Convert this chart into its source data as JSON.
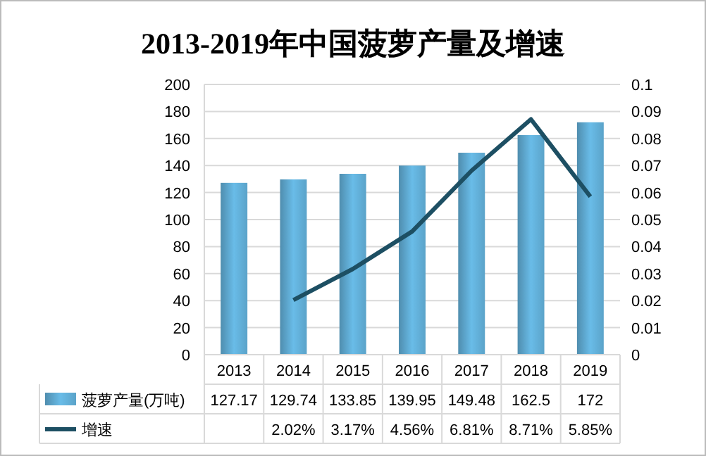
{
  "chart_data": {
    "type": "bar",
    "title": "2013-2019年中国菠萝产量及增速",
    "categories": [
      "2013",
      "2014",
      "2015",
      "2016",
      "2017",
      "2018",
      "2019"
    ],
    "series": [
      {
        "name": "菠萝产量(万吨)",
        "color": "#5ba3c9",
        "values": [
          127.17,
          129.74,
          133.85,
          139.95,
          149.48,
          162.5,
          172
        ],
        "value_labels": [
          "127.17",
          "129.74",
          "133.85",
          "139.95",
          "149.48",
          "162.5",
          "172"
        ]
      },
      {
        "name": "增速",
        "type": "line",
        "axis": "y2",
        "color": "#1d4f63",
        "values": [
          null,
          0.0202,
          0.0317,
          0.0456,
          0.0681,
          0.0871,
          0.0585
        ],
        "value_labels": [
          null,
          "2.02%",
          "3.17%",
          "4.56%",
          "6.81%",
          "8.71%",
          "5.85%"
        ]
      }
    ],
    "ylim": [
      0,
      200
    ],
    "yticks": [
      0,
      20,
      40,
      60,
      80,
      100,
      120,
      140,
      160,
      180,
      200
    ],
    "y2lim": [
      0,
      0.1
    ],
    "y2ticks": [
      0,
      0.01,
      0.02,
      0.03,
      0.04,
      0.05,
      0.06,
      0.07,
      0.08,
      0.09,
      0.1
    ],
    "grid": "y",
    "legend": "bottom",
    "marker": "none",
    "line_style": "solid"
  }
}
